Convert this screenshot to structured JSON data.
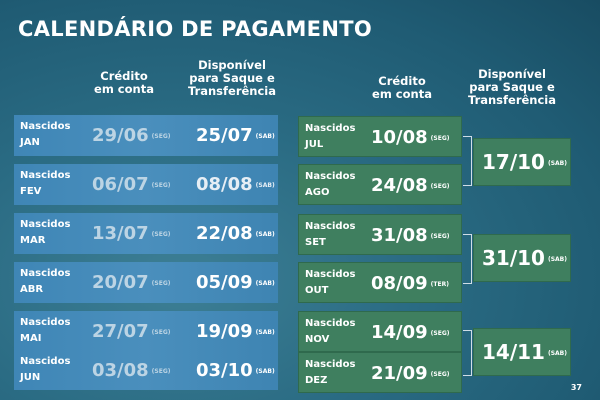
{
  "title": "CALENDÁRIO DE PAGAMENTO",
  "headers": {
    "credito": [
      "Crédito",
      "em conta"
    ],
    "disponivel": [
      "Disponível",
      "para Saque e",
      "Transferência"
    ]
  },
  "left_rows": [
    {
      "label": "Nascidos",
      "month": "JAN",
      "credit": "29/06",
      "credit_dow": "(SEG)",
      "avail": "25/07",
      "avail_dow": "(SAB)"
    },
    {
      "label": "Nascidos",
      "month": "FEV",
      "credit": "06/07",
      "credit_dow": "(SEG)",
      "avail": "08/08",
      "avail_dow": "(SAB)"
    },
    {
      "label": "Nascidos",
      "month": "MAR",
      "credit": "13/07",
      "credit_dow": "(SEG)",
      "avail": "22/08",
      "avail_dow": "(SAB)"
    },
    {
      "label": "Nascidos",
      "month": "ABR",
      "credit": "20/07",
      "credit_dow": "(SEG)",
      "avail": "05/09",
      "avail_dow": "(SAB)"
    },
    {
      "label": "Nascidos",
      "month": "MAI",
      "credit": "27/07",
      "credit_dow": "(SEG)",
      "avail": "19/09",
      "avail_dow": "(SAB)"
    },
    {
      "label": "Nascidos",
      "month": "JUN",
      "credit": "03/08",
      "credit_dow": "(SEG)",
      "avail": "03/10",
      "avail_dow": "(SAB)"
    }
  ],
  "right_rows": [
    {
      "label": "Nascidos",
      "month": "JUL",
      "credit": "10/08",
      "credit_dow": "(SEG)"
    },
    {
      "label": "Nascidos",
      "month": "AGO",
      "credit": "24/08",
      "credit_dow": "(SEG)"
    },
    {
      "label": "Nascidos",
      "month": "SET",
      "credit": "31/08",
      "credit_dow": "(SEG)"
    },
    {
      "label": "Nascidos",
      "month": "OUT",
      "credit": "08/09",
      "credit_dow": "(TER)"
    },
    {
      "label": "Nascidos",
      "month": "NOV",
      "credit": "14/09",
      "credit_dow": "(SEG)"
    },
    {
      "label": "Nascidos",
      "month": "DEZ",
      "credit": "21/09",
      "credit_dow": "(SEG)"
    }
  ],
  "right_avail": [
    {
      "date": "17/10",
      "dow": "(SAB)"
    },
    {
      "date": "31/10",
      "dow": "(SAB)"
    },
    {
      "date": "14/11",
      "dow": "(SAB)"
    }
  ],
  "page_number": "37",
  "colors": {
    "left_row": "#4a8fbd",
    "right_row": "#3f7f5f",
    "background": "#2a6b83"
  }
}
